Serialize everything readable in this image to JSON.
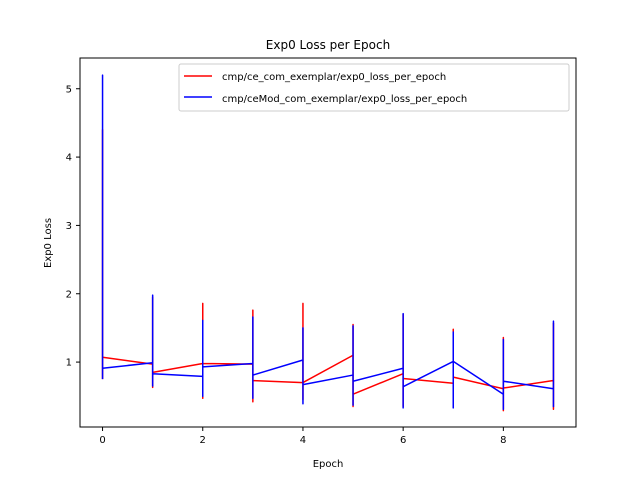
{
  "chart_data": {
    "type": "line",
    "title": "Exp0 Loss per Epoch",
    "xlabel": "Epoch",
    "ylabel": "Exp0 Loss",
    "xlim": [
      -0.45,
      9.45
    ],
    "ylim": [
      0.05,
      5.45
    ],
    "xticks": [
      0,
      2,
      4,
      6,
      8
    ],
    "yticks": [
      1,
      2,
      3,
      4,
      5
    ],
    "grid": false,
    "legend_position": "top-right",
    "series": [
      {
        "name": "cmp/ce_com_exemplar/exp0_loss_per_epoch",
        "color": "#ff0000",
        "values": [
          [
            0,
            0.75
          ],
          [
            0,
            4.4
          ],
          [
            0,
            1.07
          ],
          [
            1,
            0.97
          ],
          [
            1,
            0.63
          ],
          [
            1,
            1.95
          ],
          [
            1,
            0.85
          ],
          [
            2,
            0.98
          ],
          [
            2,
            0.47
          ],
          [
            2,
            1.86
          ],
          [
            2,
            0.98
          ],
          [
            3,
            0.97
          ],
          [
            3,
            0.42
          ],
          [
            3,
            1.76
          ],
          [
            3,
            0.73
          ],
          [
            4,
            0.7
          ],
          [
            4,
            0.45
          ],
          [
            4,
            1.86
          ],
          [
            4,
            0.7
          ],
          [
            5,
            1.1
          ],
          [
            5,
            0.35
          ],
          [
            5,
            1.55
          ],
          [
            5,
            0.53
          ],
          [
            6,
            0.83
          ],
          [
            6,
            0.35
          ],
          [
            6,
            1.7
          ],
          [
            6,
            0.76
          ],
          [
            7,
            0.69
          ],
          [
            7,
            0.36
          ],
          [
            7,
            1.48
          ],
          [
            7,
            0.78
          ],
          [
            8,
            0.61
          ],
          [
            8,
            0.29
          ],
          [
            8,
            1.36
          ],
          [
            8,
            0.62
          ],
          [
            9,
            0.73
          ],
          [
            9,
            0.31
          ],
          [
            9,
            1.57
          ],
          [
            9,
            0.74
          ]
        ]
      },
      {
        "name": "cmp/ceMod_com_exemplar/exp0_loss_per_epoch",
        "color": "#0000ff",
        "values": [
          [
            0,
            0.75
          ],
          [
            0,
            5.2
          ],
          [
            0,
            0.91
          ],
          [
            1,
            0.99
          ],
          [
            1,
            0.65
          ],
          [
            1,
            1.98
          ],
          [
            1,
            0.83
          ],
          [
            2,
            0.79
          ],
          [
            2,
            0.5
          ],
          [
            2,
            1.61
          ],
          [
            2,
            0.93
          ],
          [
            3,
            0.98
          ],
          [
            3,
            0.47
          ],
          [
            3,
            1.66
          ],
          [
            3,
            0.81
          ],
          [
            4,
            1.03
          ],
          [
            4,
            0.39
          ],
          [
            4,
            1.5
          ],
          [
            4,
            0.67
          ],
          [
            5,
            0.81
          ],
          [
            5,
            0.37
          ],
          [
            5,
            1.53
          ],
          [
            5,
            0.72
          ],
          [
            6,
            0.91
          ],
          [
            6,
            0.33
          ],
          [
            6,
            1.71
          ],
          [
            6,
            0.64
          ],
          [
            7,
            1.01
          ],
          [
            7,
            0.33
          ],
          [
            7,
            1.44
          ],
          [
            7,
            1.01
          ],
          [
            8,
            0.53
          ],
          [
            8,
            0.31
          ],
          [
            8,
            1.33
          ],
          [
            8,
            0.72
          ],
          [
            9,
            0.61
          ],
          [
            9,
            0.35
          ],
          [
            9,
            1.6
          ],
          [
            9,
            0.61
          ]
        ]
      }
    ]
  }
}
